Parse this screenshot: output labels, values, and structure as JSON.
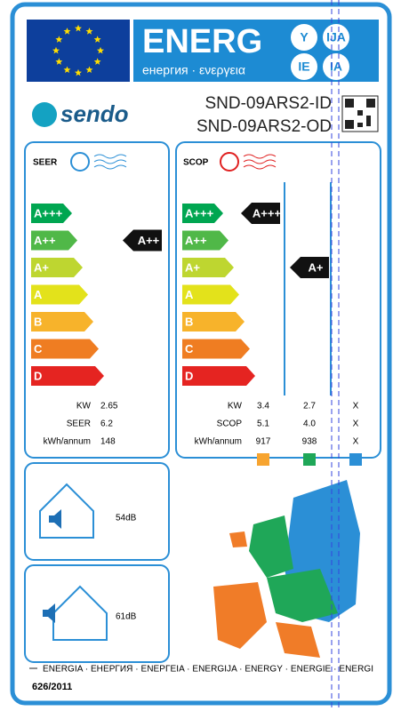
{
  "header": {
    "energy": "ENERG",
    "subtitle": "енергия · ενεργεια",
    "suffixes": [
      "Y",
      "IJA",
      "IE",
      "IA"
    ],
    "brand": "sendo",
    "model_indoor": "SND-09ARS2-ID",
    "model_outdoor": "SND-09ARS2-OD"
  },
  "classes": [
    "A+++",
    "A++",
    "A+",
    "A",
    "B",
    "C",
    "D"
  ],
  "seer": {
    "label": "SEER",
    "rating": "A++",
    "rows": [
      {
        "label": "KW",
        "value": "2.65"
      },
      {
        "label": "SEER",
        "value": "6.2"
      },
      {
        "label": "kWh/annum",
        "value": "148"
      }
    ]
  },
  "scop": {
    "label": "SCOP",
    "ratings": [
      "A+++",
      "A+"
    ],
    "rows": [
      {
        "label": "KW",
        "values": [
          "3.4",
          "2.7",
          "X"
        ]
      },
      {
        "label": "SCOP",
        "values": [
          "5.1",
          "4.0",
          "X"
        ]
      },
      {
        "label": "kWh/annum",
        "values": [
          "917",
          "938",
          "X"
        ]
      }
    ]
  },
  "noise": {
    "indoor": "54dB",
    "outdoor": "61dB"
  },
  "footer": {
    "languages": "ENERGIA · ЕНЕРГИЯ · ΕΝΕΡΓΕΙΑ · ENERGIJA · ENERGY · ENERGIE · ENERGI",
    "regulation": "626/2011"
  }
}
